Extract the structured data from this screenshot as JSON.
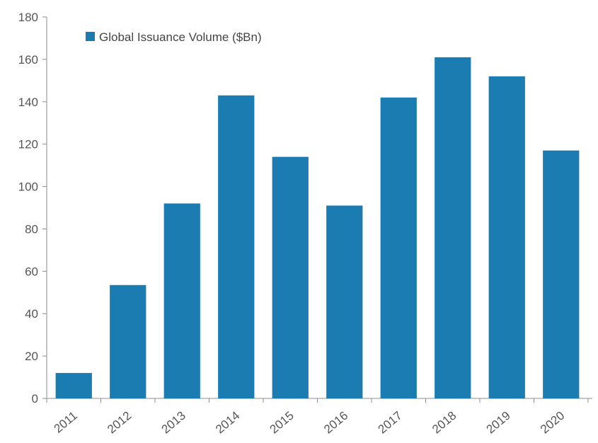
{
  "chart_data": {
    "type": "bar",
    "categories": [
      "2011",
      "2012",
      "2013",
      "2014",
      "2015",
      "2016",
      "2017",
      "2018",
      "2019",
      "2020"
    ],
    "series": [
      {
        "name": "Global Issuance Volume ($Bn)",
        "values": [
          12,
          53.5,
          92,
          143,
          114,
          91,
          142,
          161,
          152,
          117
        ],
        "color": "#1a7cb0"
      }
    ],
    "ylim": [
      0,
      180
    ],
    "yticks": [
      0,
      20,
      40,
      60,
      80,
      100,
      120,
      140,
      160,
      180
    ],
    "grid": false,
    "legend_position": "top-left",
    "xlabel": "",
    "ylabel": ""
  }
}
